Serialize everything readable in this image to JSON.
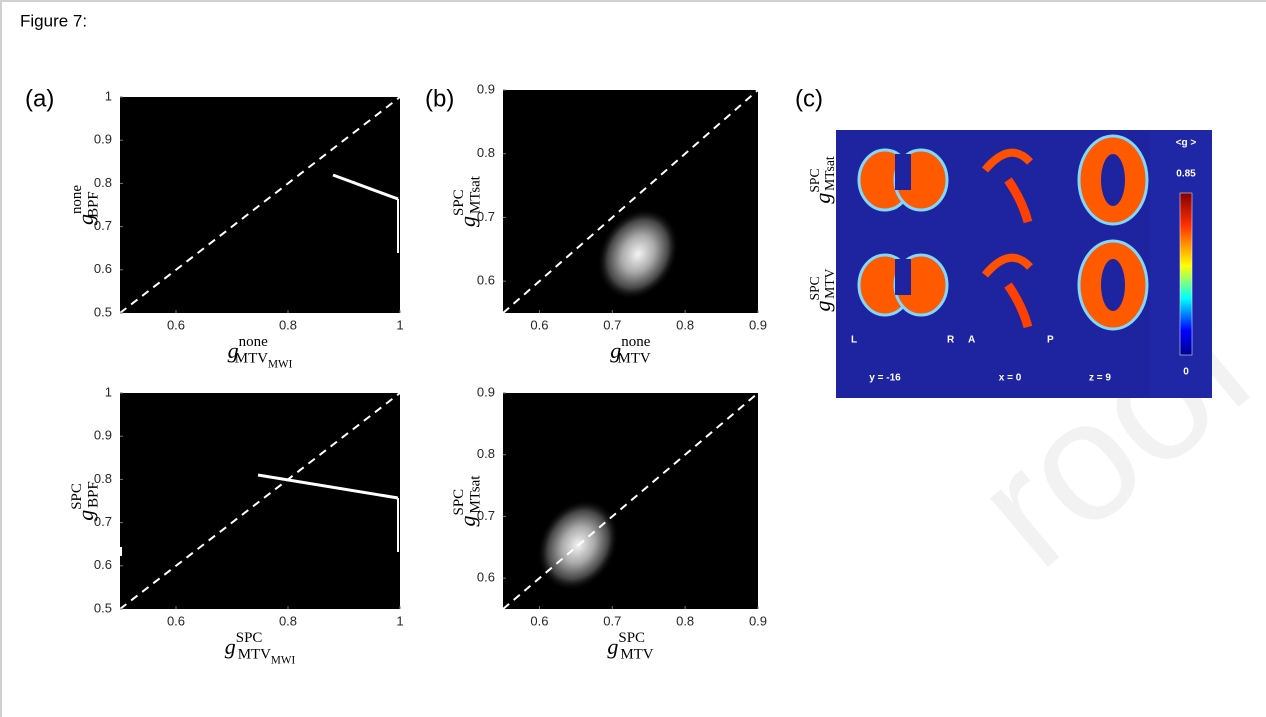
{
  "figure_label": "Figure 7:",
  "watermark": "roof",
  "panel_labels": [
    "(a)",
    "(b)",
    "(c)"
  ],
  "plots": [
    {
      "xlim": [
        0.5,
        1
      ],
      "ylim": [
        0.5,
        1
      ],
      "xticks": [
        0.6,
        0.8,
        1
      ],
      "yticks": [
        0.5,
        0.6,
        0.7,
        0.8,
        0.9,
        1
      ],
      "xlabel": {
        "base": "g",
        "sup": "none",
        "sub": "MTV",
        "subsub": "MWI"
      },
      "ylabel": {
        "base": "g",
        "sup": "none",
        "sub": "BPF"
      }
    },
    {
      "xlim": [
        0.5,
        1
      ],
      "ylim": [
        0.5,
        1
      ],
      "xticks": [
        0.6,
        0.8,
        1
      ],
      "yticks": [
        0.5,
        0.6,
        0.7,
        0.8,
        0.9,
        1
      ],
      "xlabel": {
        "base": "g",
        "sup": "SPC",
        "sub": "MTV",
        "subsub": "MWI"
      },
      "ylabel": {
        "base": "g",
        "sup": "SPC",
        "sub": "BPF"
      }
    },
    {
      "xlim": [
        0.55,
        0.9
      ],
      "ylim": [
        0.55,
        0.9
      ],
      "xticks": [
        0.6,
        0.7,
        0.8,
        0.9
      ],
      "yticks": [
        0.6,
        0.7,
        0.8,
        0.9
      ],
      "xlabel": {
        "base": "g",
        "sup": "none",
        "sub": "MTV"
      },
      "ylabel": {
        "base": "g",
        "sup": "SPC",
        "sub": "MTsat"
      }
    },
    {
      "xlim": [
        0.55,
        0.9
      ],
      "ylim": [
        0.55,
        0.9
      ],
      "xticks": [
        0.6,
        0.7,
        0.8,
        0.9
      ],
      "yticks": [
        0.6,
        0.7,
        0.8,
        0.9
      ],
      "xlabel": {
        "base": "g",
        "sup": "SPC",
        "sub": "MTV"
      },
      "ylabel": {
        "base": "g",
        "sup": "SPC",
        "sub": "MTsat"
      }
    }
  ],
  "brain_map": {
    "row_labels": [
      {
        "base": "g",
        "sup": "SPC",
        "sub": "MTsat"
      },
      {
        "base": "g",
        "sup": "SPC",
        "sub": "MTV"
      }
    ],
    "colorbar_title": "<g >",
    "colorbar_max": 0.85,
    "colorbar_min": 0,
    "orientation_labels": [
      "L",
      "R",
      "A",
      "P"
    ],
    "slice_labels": [
      "y = -16",
      "x = 0",
      "z = 9"
    ]
  }
}
